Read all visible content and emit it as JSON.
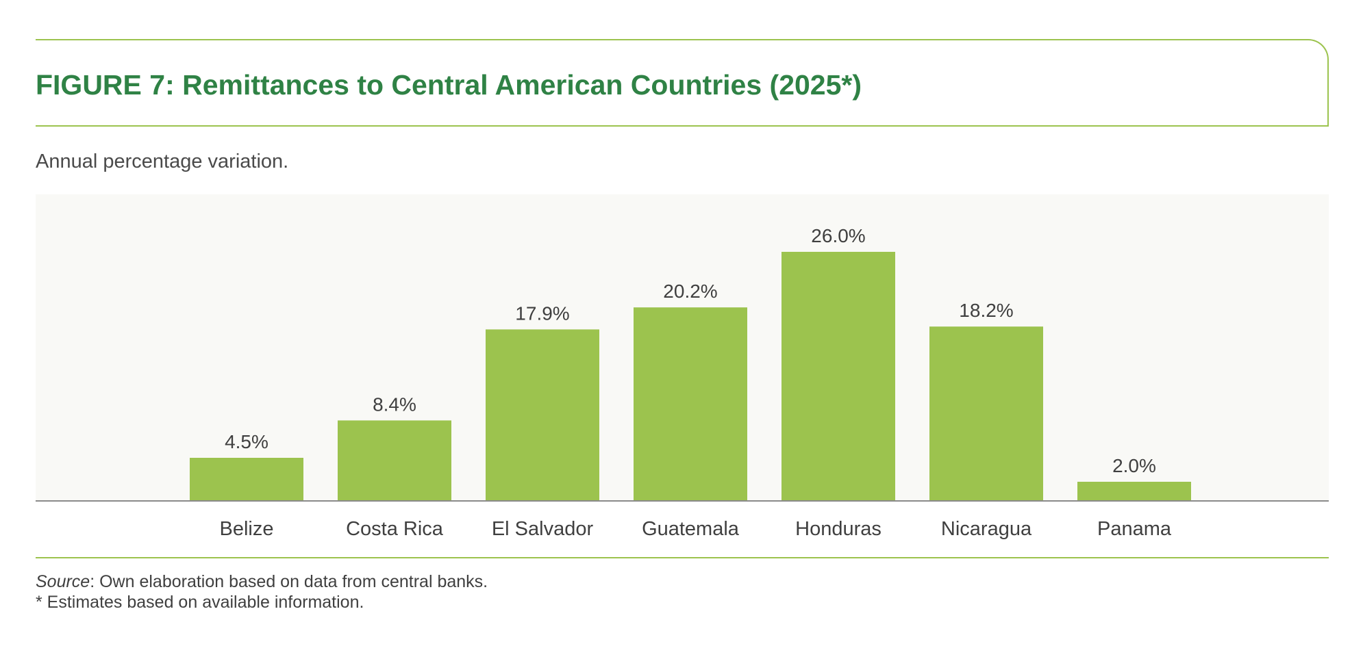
{
  "figure": {
    "title": "FIGURE 7: Remittances to Central American Countries (2025*)",
    "subtitle": "Annual percentage variation."
  },
  "footer": {
    "source_label": "Source",
    "source_text": ": Own elaboration based on data from central banks.",
    "footnote": "* Estimates based on available information."
  },
  "colors": {
    "bar": "#9cc34e",
    "title": "#2f8245",
    "plot_background": "#f9f9f6",
    "axis": "#8a8a8a"
  },
  "chart_data": {
    "type": "bar",
    "categories": [
      "Belize",
      "Costa Rica",
      "El Salvador",
      "Guatemala",
      "Honduras",
      "Nicaragua",
      "Panama"
    ],
    "values": [
      4.5,
      8.4,
      17.9,
      20.2,
      26.0,
      18.2,
      2.0
    ],
    "value_labels": [
      "4.5%",
      "8.4%",
      "17.9%",
      "20.2%",
      "26.0%",
      "18.2%",
      "2.0%"
    ],
    "title": "FIGURE 7: Remittances to Central American Countries (2025*)",
    "subtitle": "Annual percentage variation.",
    "xlabel": "",
    "ylabel": "",
    "ylim": [
      0,
      30
    ],
    "grid": false,
    "legend": "none"
  }
}
